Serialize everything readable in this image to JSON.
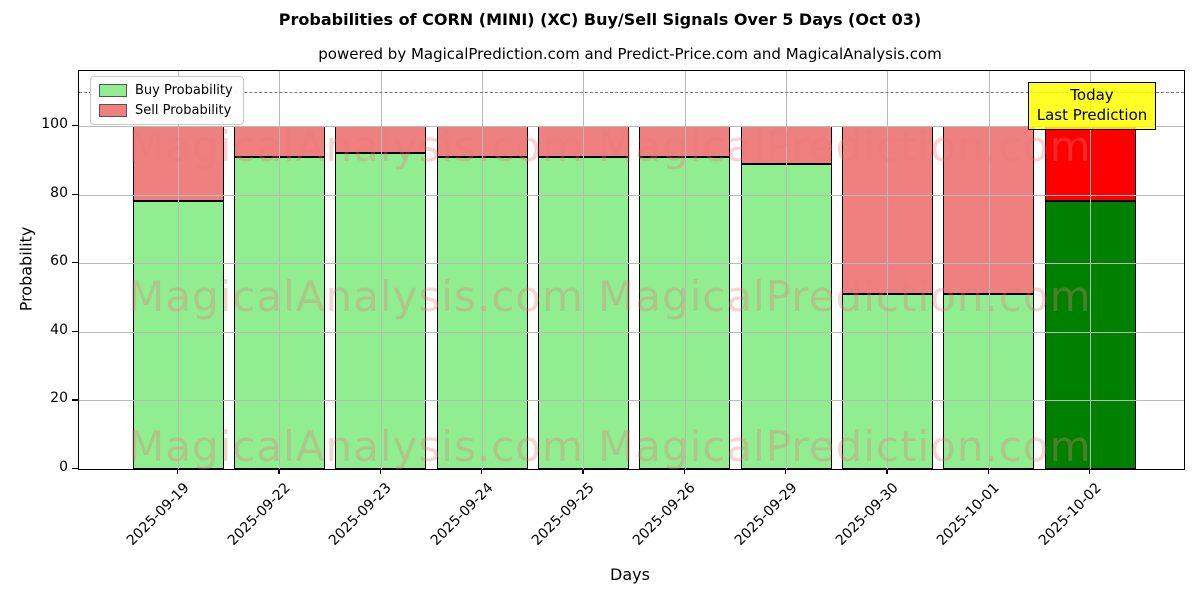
{
  "header": {
    "title": "Probabilities of CORN (MINI) (XC) Buy/Sell Signals Over 5 Days (Oct 03)",
    "subtitle": "powered by MagicalPrediction.com and Predict-Price.com and MagicalAnalysis.com"
  },
  "chart_data": {
    "type": "bar",
    "stacked": true,
    "title": "Probabilities of CORN (MINI) (XC) Buy/Sell Signals Over 5 Days (Oct 03)",
    "xlabel": "Days",
    "ylabel": "Probability",
    "categories": [
      "2025-09-19",
      "2025-09-22",
      "2025-09-23",
      "2025-09-24",
      "2025-09-25",
      "2025-09-26",
      "2025-09-29",
      "2025-09-30",
      "2025-10-01",
      "2025-10-02"
    ],
    "series": [
      {
        "name": "Buy Probability",
        "values": [
          78,
          91,
          92,
          91,
          91,
          91,
          89,
          51,
          51,
          78
        ],
        "color": "#90EE90",
        "today_color": "#008000"
      },
      {
        "name": "Sell Probability",
        "values": [
          22,
          9,
          8,
          9,
          9,
          9,
          11,
          49,
          49,
          22
        ],
        "color": "#F08080",
        "today_color": "#FF0000"
      }
    ],
    "today_index": 9,
    "ylim": [
      0,
      116
    ],
    "yticks": [
      0,
      20,
      40,
      60,
      80,
      100
    ],
    "dashed_line_y": 110,
    "grid": true,
    "legend_position": "upper left"
  },
  "annotations": {
    "today_line1": "Today",
    "today_line2": "Last Prediction",
    "today_bg": "#FFFF00"
  },
  "watermarks": [
    "MagicalAnalysis.com",
    "MagicalPrediction.com"
  ],
  "colors": {
    "buy": "#90EE90",
    "sell": "#F08080",
    "today_buy": "#008000",
    "today_sell": "#FF0000",
    "grid": "#b9b9b9",
    "bar_border": "#000000"
  }
}
